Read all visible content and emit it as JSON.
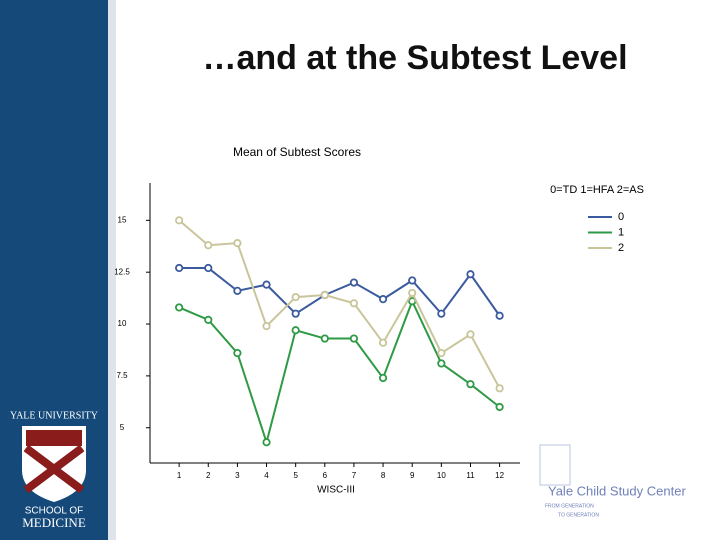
{
  "slide_title": "…and at the Subtest Level",
  "chart_data": {
    "type": "line",
    "title": "Mean of Subtest Scores",
    "legend_title": "0=TD 1=HFA 2=AS",
    "x_label": "WISC-III",
    "x": [
      1,
      2,
      3,
      4,
      5,
      6,
      7,
      8,
      9,
      10,
      11,
      12
    ],
    "xlim": [
      0,
      12.7
    ],
    "xticks": [
      1,
      2,
      3,
      4,
      5,
      6,
      7,
      8,
      9,
      10,
      11,
      12
    ],
    "ylim": [
      3.3,
      16.8
    ],
    "yticks": [
      5,
      7.5,
      10,
      12.5,
      15
    ],
    "legend": "top-right",
    "series": [
      {
        "name": "0",
        "color": "#3b5b9e",
        "values": [
          12.7,
          12.7,
          11.6,
          11.9,
          10.5,
          11.4,
          12.0,
          11.2,
          12.1,
          10.5,
          12.4,
          10.4
        ]
      },
      {
        "name": "1",
        "color": "#2f9a45",
        "values": [
          10.8,
          10.2,
          8.6,
          4.3,
          9.7,
          9.3,
          9.3,
          7.4,
          11.1,
          8.1,
          7.1,
          6.0
        ]
      },
      {
        "name": "2",
        "color": "#c9c59b",
        "values": [
          15.0,
          13.8,
          13.9,
          9.9,
          11.3,
          11.4,
          11.0,
          9.1,
          11.5,
          8.6,
          9.5,
          6.9
        ]
      }
    ]
  },
  "logos": {
    "university": "YALE UNIVERSITY",
    "school_1": "SCHOOL OF",
    "school_2": "MEDICINE",
    "center": "Yale Child Study Center",
    "motto_1": "FROM GENERATION",
    "motto_2": "TO GENERATION"
  }
}
